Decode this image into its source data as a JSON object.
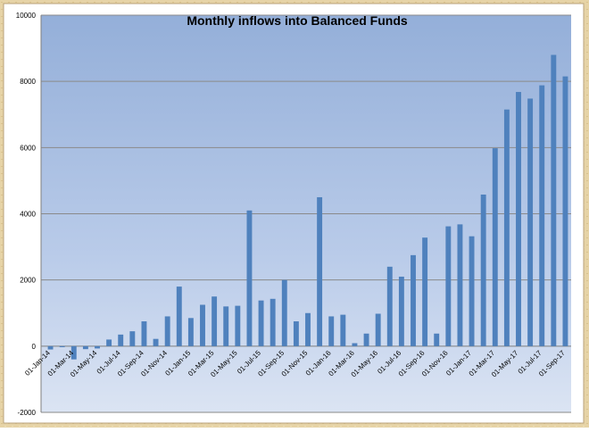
{
  "chart_data": {
    "type": "bar",
    "title": "Monthly inflows into Balanced Funds",
    "xlabel": "",
    "ylabel": "",
    "ylim": [
      -2000,
      10000
    ],
    "yticks": [
      -2000,
      0,
      2000,
      4000,
      6000,
      8000,
      10000
    ],
    "grid": true,
    "legend": "none",
    "bar_color": "#4f81bd",
    "x": [
      "01-Jan-14",
      "01-Feb-14",
      "01-Mar-14",
      "01-Apr-14",
      "01-May-14",
      "01-Jun-14",
      "01-Jul-14",
      "01-Aug-14",
      "01-Sep-14",
      "01-Oct-14",
      "01-Nov-14",
      "01-Dec-14",
      "01-Jan-15",
      "01-Feb-15",
      "01-Mar-15",
      "01-Apr-15",
      "01-May-15",
      "01-Jun-15",
      "01-Jul-15",
      "01-Aug-15",
      "01-Sep-15",
      "01-Oct-15",
      "01-Nov-15",
      "01-Dec-15",
      "01-Jan-16",
      "01-Feb-16",
      "01-Mar-16",
      "01-Apr-16",
      "01-May-16",
      "01-Jun-16",
      "01-Jul-16",
      "01-Aug-16",
      "01-Sep-16",
      "01-Oct-16",
      "01-Nov-16",
      "01-Dec-16",
      "01-Jan-17",
      "01-Feb-17",
      "01-Mar-17",
      "01-Apr-17",
      "01-May-17",
      "01-Jun-17",
      "01-Jul-17",
      "01-Aug-17",
      "01-Sep-17"
    ],
    "tick_labels": [
      "01-Jan-14",
      "01-Mar-14",
      "01-May-14",
      "01-Jul-14",
      "01-Sep-14",
      "01-Nov-14",
      "01-Jan-15",
      "01-Mar-15",
      "01-May-15",
      "01-Jul-15",
      "01-Sep-15",
      "01-Nov-15",
      "01-Jan-16",
      "01-Mar-16",
      "01-May-16",
      "01-Jul-16",
      "01-Sep-16",
      "01-Nov-16",
      "01-Jan-17",
      "01-Mar-17",
      "01-May-17",
      "01-Jul-17",
      "01-Sep-17"
    ],
    "values": [
      -100,
      -30,
      -400,
      -90,
      -70,
      200,
      350,
      450,
      750,
      220,
      900,
      1800,
      850,
      1250,
      1500,
      1200,
      1220,
      4100,
      1380,
      1430,
      2000,
      750,
      1000,
      4500,
      900,
      950,
      90,
      380,
      980,
      2400,
      2100,
      2750,
      3280,
      380,
      3620,
      3680,
      3320,
      4580,
      5980,
      7150,
      7680,
      7480,
      7880,
      8800,
      8150
    ]
  }
}
